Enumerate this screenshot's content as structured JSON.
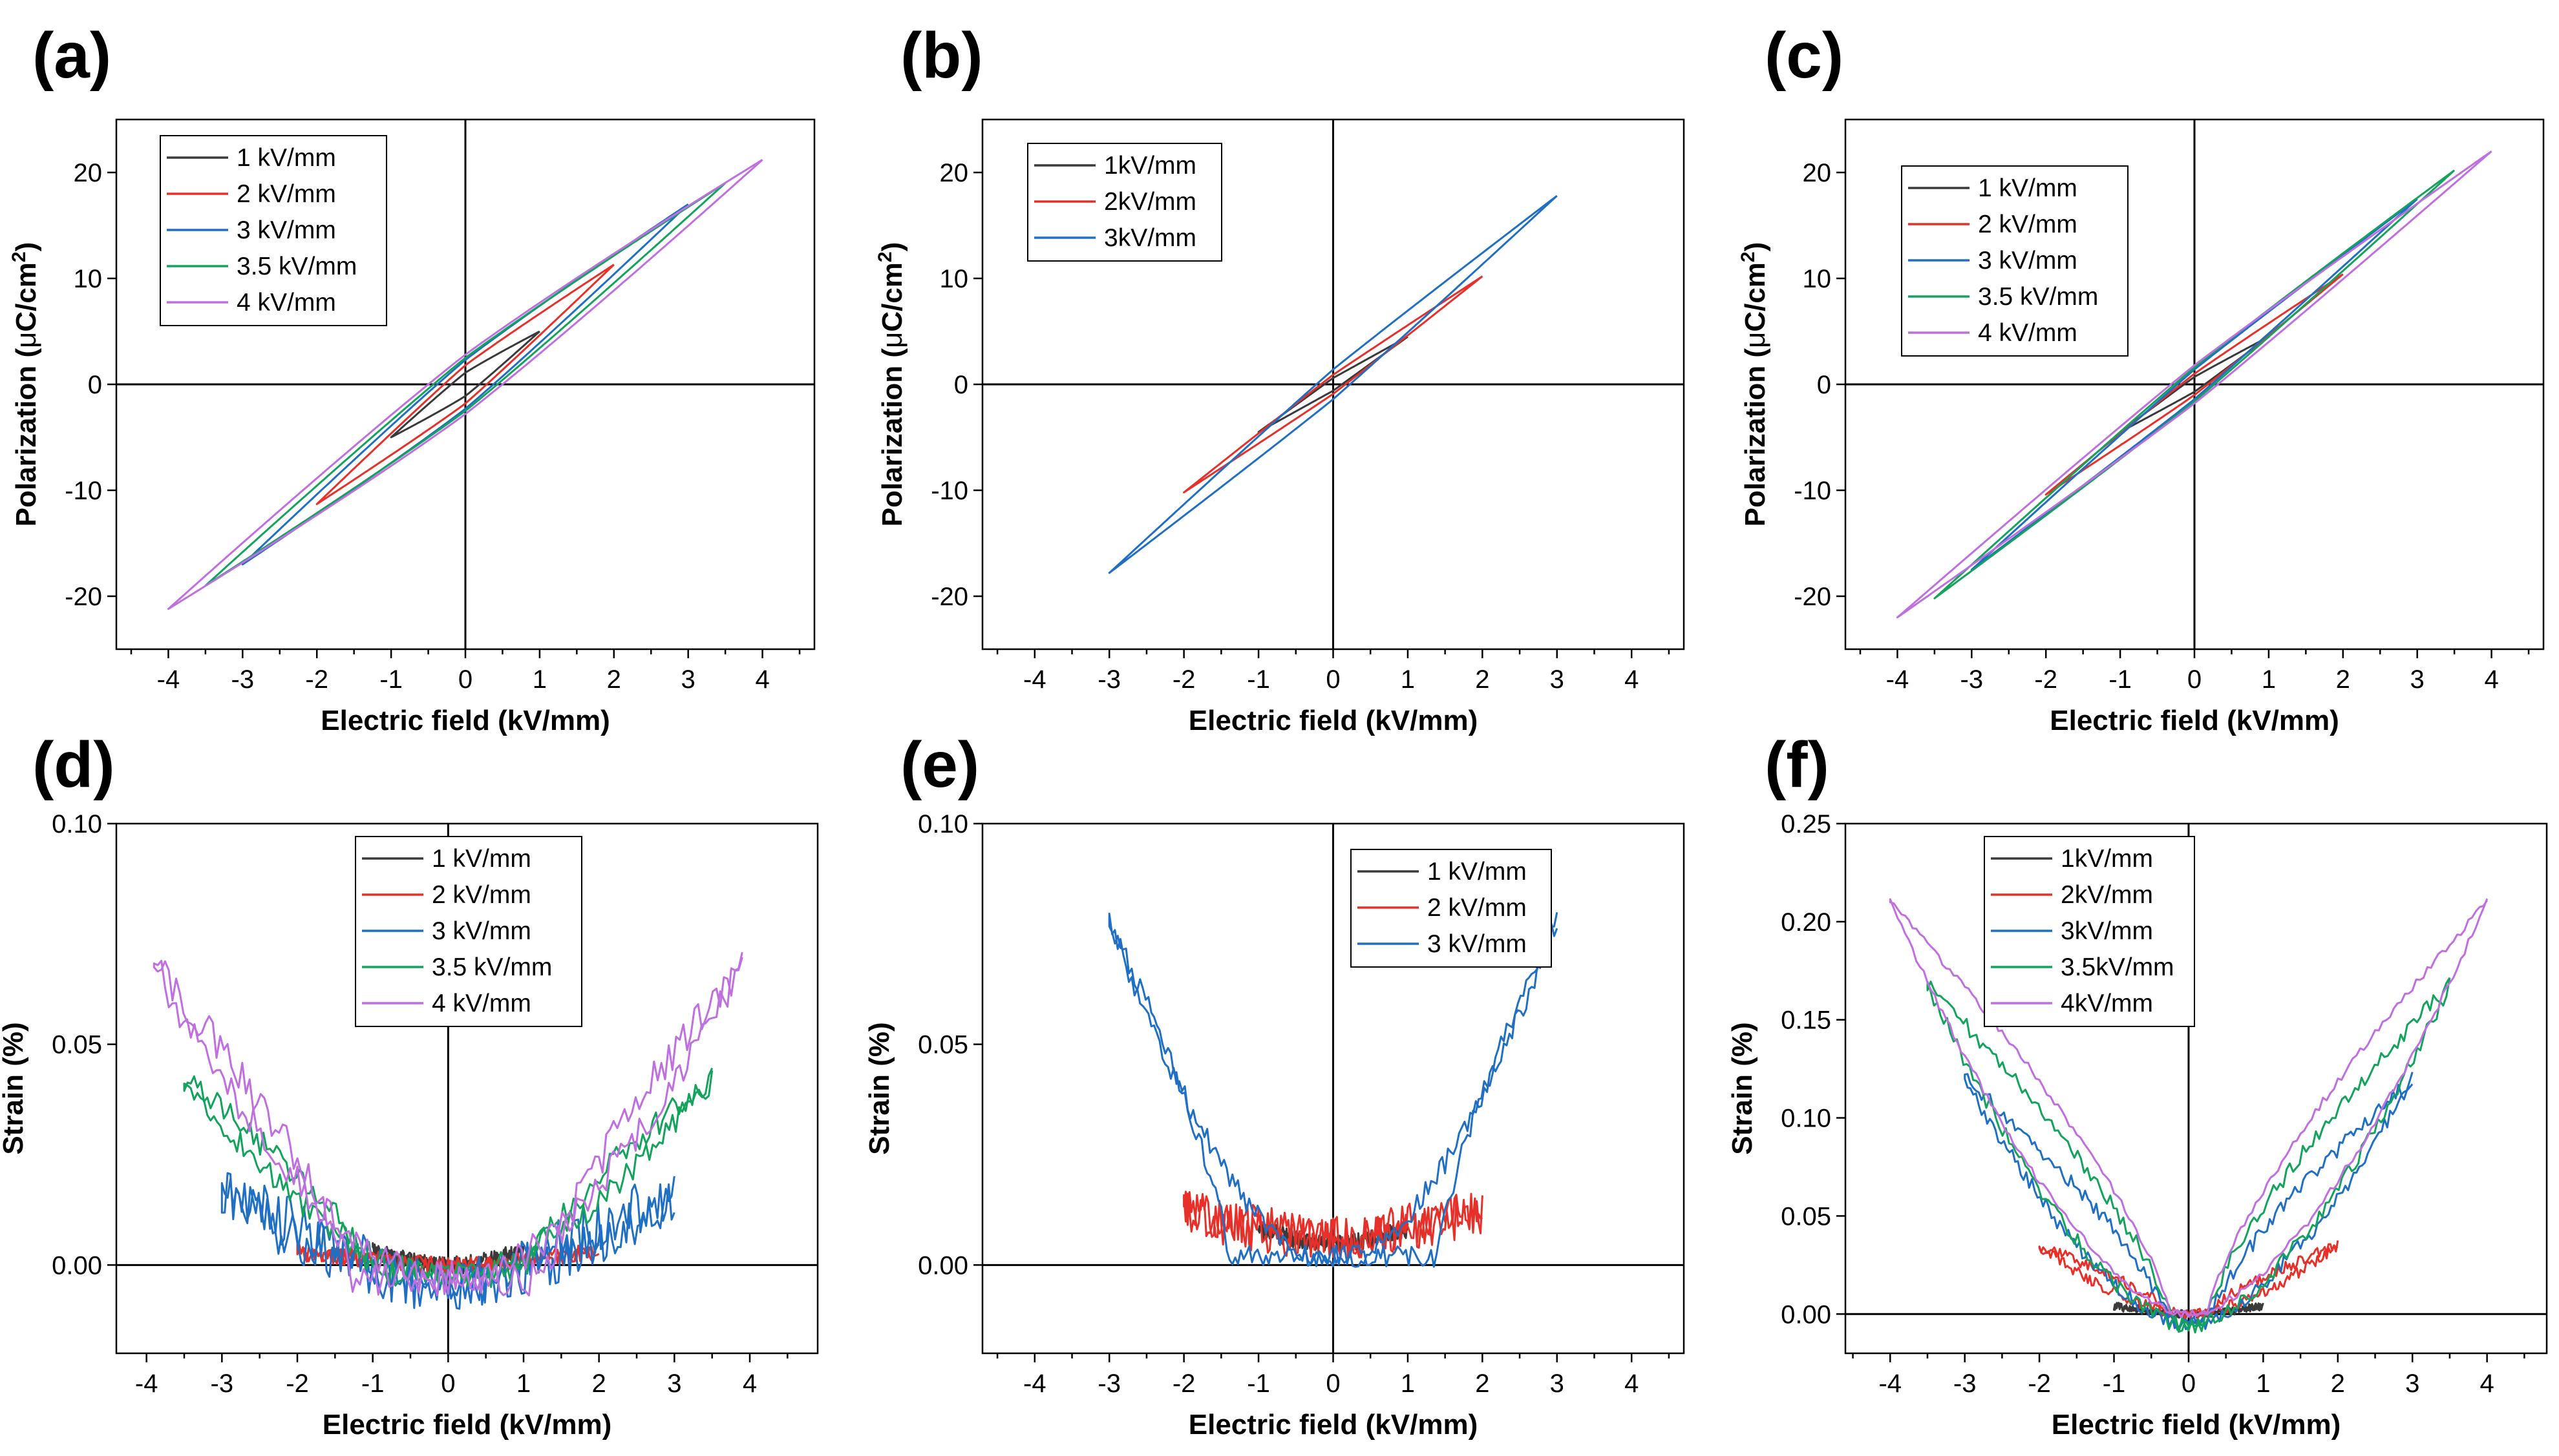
{
  "colors": {
    "black": "#3a3a3a",
    "red": "#e8302a",
    "blue": "#1f6fc5",
    "green": "#13a35c",
    "purple": "#c06fe0"
  },
  "chart_data": [
    {
      "id": "a",
      "label": "(a)",
      "type": "line",
      "kind": "pe",
      "xlabel": "Electric field (kV/mm)",
      "ylabel_main": "Polarization (",
      "ylabel_mu": "μ",
      "ylabel_unit": "C/cm",
      "ylabel_sup": "2",
      "ylabel_close": ")",
      "xlim": [
        -4.7,
        4.7
      ],
      "ylim": [
        -25,
        25
      ],
      "xticks": [
        -4,
        -3,
        -2,
        -1,
        0,
        1,
        2,
        3,
        4
      ],
      "xtick_labels": [
        "-4",
        "-3",
        "-2",
        "-1",
        "0",
        "1",
        "2",
        "3",
        "4"
      ],
      "yticks": [
        -20,
        -10,
        0,
        10,
        20
      ],
      "ytick_labels": [
        "-20",
        "-10",
        "0",
        "10",
        "20"
      ],
      "legend": [
        "1 kV/mm",
        "2 kV/mm",
        "3 kV/mm",
        "3.5 kV/mm",
        "4 kV/mm"
      ],
      "series": [
        {
          "name": "1 kV/mm",
          "color": "black",
          "emax": 1.0,
          "pmax": 5.0,
          "pr": 1.1,
          "pw": 1.2
        },
        {
          "name": "2 kV/mm",
          "color": "red",
          "emax": 2.0,
          "pmax": 11.3,
          "pr": 1.8,
          "pw": 1.2
        },
        {
          "name": "3 kV/mm",
          "color": "blue",
          "emax": 3.0,
          "pmax": 17.0,
          "pr": 2.3,
          "pw": 1.3
        },
        {
          "name": "3.5 kV/mm",
          "color": "green",
          "emax": 3.5,
          "pmax": 19.0,
          "pr": 2.5,
          "pw": 1.3
        },
        {
          "name": "4 kV/mm",
          "color": "purple",
          "emax": 4.0,
          "pmax": 21.2,
          "pr": 2.8,
          "pw": 1.4
        }
      ]
    },
    {
      "id": "b",
      "label": "(b)",
      "type": "line",
      "kind": "pe",
      "xlabel": "Electric field (kV/mm)",
      "ylabel_main": "Polarization (",
      "ylabel_mu": "μ",
      "ylabel_unit": "C/cm",
      "ylabel_sup": "2",
      "ylabel_close": ")",
      "xlim": [
        -4.7,
        4.7
      ],
      "ylim": [
        -25,
        25
      ],
      "xticks": [
        -4,
        -3,
        -2,
        -1,
        0,
        1,
        2,
        3,
        4
      ],
      "xtick_labels": [
        "-4",
        "-3",
        "-2",
        "-1",
        "0",
        "1",
        "2",
        "3",
        "4"
      ],
      "yticks": [
        -20,
        -10,
        0,
        10,
        20
      ],
      "ytick_labels": [
        "-20",
        "-10",
        "0",
        "10",
        "20"
      ],
      "legend": [
        "1kV/mm",
        "2kV/mm",
        "3kV/mm"
      ],
      "series": [
        {
          "name": "1kV/mm",
          "color": "black",
          "emax": 1.0,
          "pmax": 4.5,
          "pr": 0.6,
          "pw": 1.0
        },
        {
          "name": "2kV/mm",
          "color": "red",
          "emax": 2.0,
          "pmax": 10.2,
          "pr": 0.9,
          "pw": 1.1
        },
        {
          "name": "3kV/mm",
          "color": "blue",
          "emax": 3.0,
          "pmax": 17.8,
          "pr": 1.4,
          "pw": 1.2
        }
      ]
    },
    {
      "id": "c",
      "label": "(c)",
      "type": "line",
      "kind": "pe",
      "xlabel": "Electric field (kV/mm)",
      "ylabel_main": "Polarization (",
      "ylabel_mu": "μ",
      "ylabel_unit": "C/cm",
      "ylabel_sup": "2",
      "ylabel_close": ")",
      "xlim": [
        -4.7,
        4.7
      ],
      "ylim": [
        -25,
        25
      ],
      "xticks": [
        -4,
        -3,
        -2,
        -1,
        0,
        1,
        2,
        3,
        4
      ],
      "xtick_labels": [
        "-4",
        "-3",
        "-2",
        "-1",
        "0",
        "1",
        "2",
        "3",
        "4"
      ],
      "yticks": [
        -20,
        -10,
        0,
        10,
        20
      ],
      "ytick_labels": [
        "-20",
        "-10",
        "0",
        "10",
        "20"
      ],
      "legend": [
        "1 kV/mm",
        "2 kV/mm",
        "3 kV/mm",
        "3.5 kV/mm",
        "4 kV/mm"
      ],
      "series": [
        {
          "name": "1 kV/mm",
          "color": "black",
          "emax": 1.0,
          "pmax": 4.5,
          "pr": 0.7,
          "pw": 1.1
        },
        {
          "name": "2 kV/mm",
          "color": "red",
          "emax": 2.0,
          "pmax": 10.4,
          "pr": 1.0,
          "pw": 1.2
        },
        {
          "name": "3 kV/mm",
          "color": "blue",
          "emax": 3.0,
          "pmax": 17.5,
          "pr": 1.4,
          "pw": 1.2
        },
        {
          "name": "3.5 kV/mm",
          "color": "green",
          "emax": 3.5,
          "pmax": 20.2,
          "pr": 1.6,
          "pw": 1.3
        },
        {
          "name": "4 kV/mm",
          "color": "purple",
          "emax": 4.0,
          "pmax": 22.0,
          "pr": 1.8,
          "pw": 1.3
        }
      ]
    },
    {
      "id": "d",
      "label": "(d)",
      "type": "line",
      "kind": "se",
      "xlabel": "Electric field (kV/mm)",
      "ylabel": "Strain (%)",
      "xlim": [
        -4.4,
        4.9
      ],
      "ylim": [
        -0.02,
        0.1
      ],
      "xticks": [
        -4,
        -3,
        -2,
        -1,
        0,
        1,
        2,
        3,
        4
      ],
      "xtick_labels": [
        "-4",
        "-3",
        "-2",
        "-1",
        "0",
        "1",
        "2",
        "3",
        "4"
      ],
      "yticks": [
        0,
        0.05,
        0.1
      ],
      "ytick_labels": [
        "0.00",
        "0.05",
        "0.10"
      ],
      "legend": [
        "1 kV/mm",
        "2 kV/mm",
        "3 kV/mm",
        "3.5 kV/mm",
        "4 kV/mm"
      ],
      "series": [
        {
          "name": "1 kV/mm",
          "color": "black",
          "emax": 1.0,
          "smax": 0.003,
          "hw": 0.4,
          "ramp": 0.0,
          "noise": 0.002,
          "valley": 0.0
        },
        {
          "name": "2 kV/mm",
          "color": "red",
          "emax": 2.0,
          "smax": 0.003,
          "hw": 0.5,
          "ramp": 0.0,
          "noise": 0.002,
          "valley": 0.0
        },
        {
          "name": "3 kV/mm",
          "color": "blue",
          "emax": 3.0,
          "smax": 0.016,
          "hw": 0.7,
          "ramp": 0.003,
          "noise": 0.006,
          "valley": -0.004
        },
        {
          "name": "3.5 kV/mm",
          "color": "green",
          "emax": 3.5,
          "smax": 0.042,
          "hw": 1.0,
          "ramp": 0.003,
          "noise": 0.003,
          "valley": -0.002
        },
        {
          "name": "4 kV/mm",
          "color": "purple",
          "emax": 3.9,
          "smax": 0.068,
          "hw": 1.3,
          "ramp": 0.003,
          "noise": 0.004,
          "valley": -0.003
        }
      ]
    },
    {
      "id": "e",
      "label": "(e)",
      "type": "line",
      "kind": "se",
      "xlabel": "Electric field (kV/mm)",
      "ylabel": "Strain (%)",
      "xlim": [
        -4.7,
        4.7
      ],
      "ylim": [
        -0.02,
        0.1
      ],
      "xticks": [
        -4,
        -3,
        -2,
        -1,
        0,
        1,
        2,
        3,
        4
      ],
      "xtick_labels": [
        "-4",
        "-3",
        "-2",
        "-1",
        "0",
        "1",
        "2",
        "3",
        "4"
      ],
      "yticks": [
        0,
        0.05,
        0.1
      ],
      "ytick_labels": [
        "0.00",
        "0.05",
        "0.10"
      ],
      "legend": [
        "1 kV/mm",
        "2 kV/mm",
        "3 kV/mm"
      ],
      "series": [
        {
          "name": "1 kV/mm",
          "color": "black",
          "emax": 1.0,
          "smax": 0.008,
          "hw": 0.3,
          "ramp": 0.0,
          "noise": 0.002,
          "valley": 0.005
        },
        {
          "name": "2 kV/mm",
          "color": "red",
          "emax": 2.0,
          "smax": 0.012,
          "hw": 0.4,
          "ramp": 0.0,
          "noise": 0.005,
          "valley": 0.006
        },
        {
          "name": "3 kV/mm",
          "color": "blue",
          "emax": 3.0,
          "smax": 0.078,
          "hw": 1.4,
          "ramp": 0.004,
          "noise": 0.0025,
          "valley": 0.002
        }
      ]
    },
    {
      "id": "f",
      "label": "(f)",
      "type": "line",
      "kind": "se",
      "xlabel": "Electric field (kV/mm)",
      "ylabel": "Strain (%)",
      "xlim": [
        -4.6,
        4.8
      ],
      "ylim": [
        -0.02,
        0.25
      ],
      "xticks": [
        -4,
        -3,
        -2,
        -1,
        0,
        1,
        2,
        3,
        4
      ],
      "xtick_labels": [
        "-4",
        "-3",
        "-2",
        "-1",
        "0",
        "1",
        "2",
        "3",
        "4"
      ],
      "yticks": [
        0,
        0.05,
        0.1,
        0.15,
        0.2,
        0.25
      ],
      "ytick_labels": [
        "0.00",
        "0.05",
        "0.10",
        "0.15",
        "0.20",
        "0.25"
      ],
      "legend": [
        "1kV/mm",
        "2kV/mm",
        "3kV/mm",
        "3.5kV/mm",
        "4kV/mm"
      ],
      "series": [
        {
          "name": "1kV/mm",
          "color": "black",
          "emax": 1.0,
          "smax": 0.004,
          "hw": 0.2,
          "ramp": 0.0,
          "noise": 0.002,
          "valley": 0.0
        },
        {
          "name": "2kV/mm",
          "color": "red",
          "emax": 2.0,
          "smax": 0.035,
          "hw": 0.25,
          "ramp": 0.0,
          "noise": 0.003,
          "valley": 0.0
        },
        {
          "name": "3kV/mm",
          "color": "blue",
          "emax": 3.0,
          "smax": 0.12,
          "hw": 0.25,
          "ramp": 0.0,
          "noise": 0.004,
          "valley": -0.005
        },
        {
          "name": "3.5kV/mm",
          "color": "green",
          "emax": 3.5,
          "smax": 0.168,
          "hw": 0.2,
          "ramp": 0.0,
          "noise": 0.004,
          "valley": -0.006
        },
        {
          "name": "4kV/mm",
          "color": "purple",
          "emax": 4.0,
          "smax": 0.21,
          "hw": 0.25,
          "ramp": 0.0,
          "noise": 0.002,
          "valley": 0.0
        }
      ]
    }
  ]
}
